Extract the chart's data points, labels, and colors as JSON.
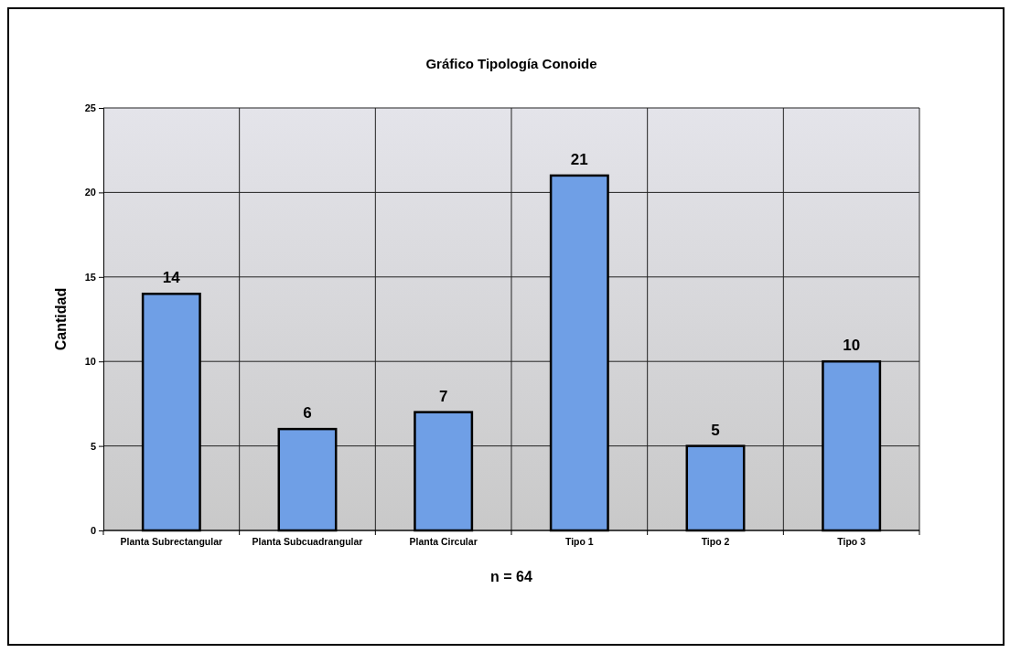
{
  "chart_data": {
    "type": "bar",
    "title": "Gráfico Tipología Conoide",
    "xlabel": "n = 64",
    "ylabel": "Cantidad",
    "categories": [
      "Planta Subrectangular",
      "Planta Subcuadrangular",
      "Planta Circular",
      "Tipo 1",
      "Tipo 2",
      "Tipo 3"
    ],
    "values": [
      14,
      6,
      7,
      21,
      5,
      10
    ],
    "color": "#6f9fe6",
    "ylim": [
      0,
      25
    ],
    "yticks": [
      0,
      5,
      10,
      15,
      20,
      25
    ],
    "grid": true,
    "data_labels": true
  }
}
